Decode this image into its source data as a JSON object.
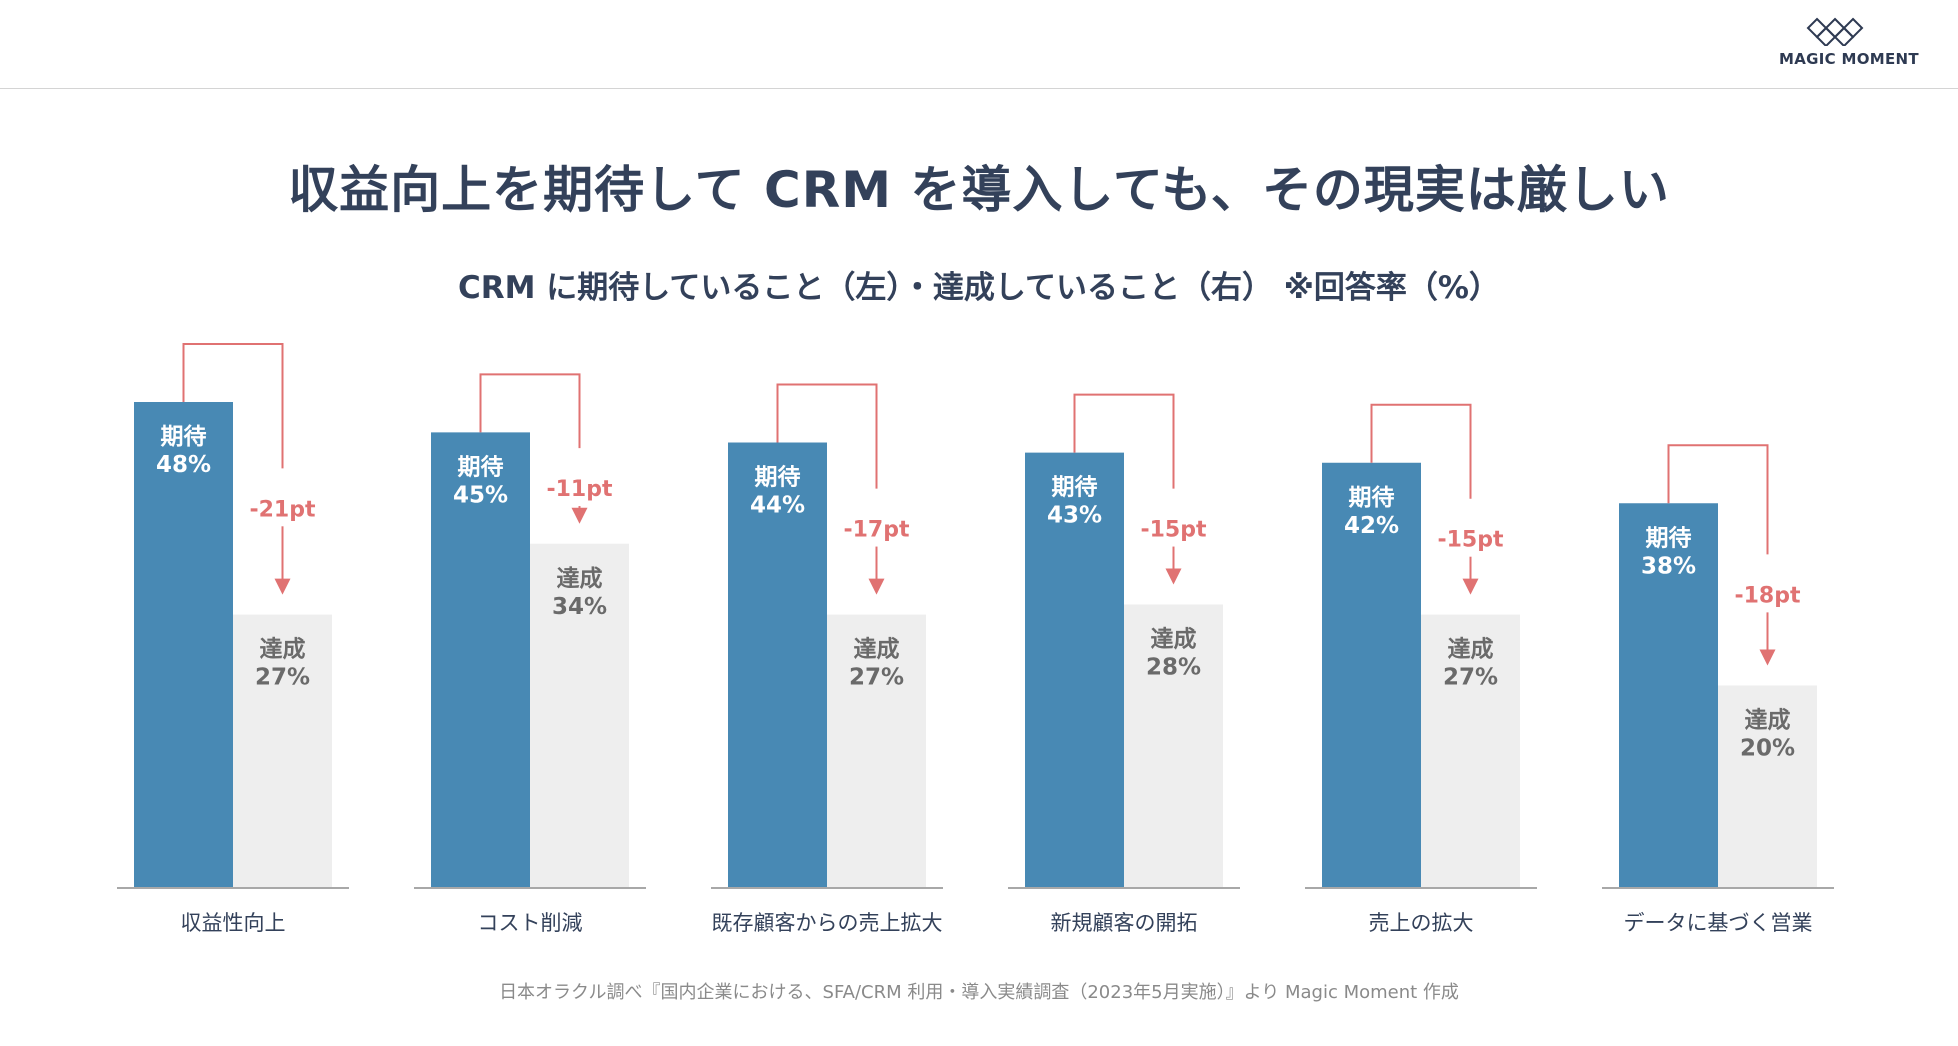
{
  "logo": {
    "text": "MAGIC MOMENT"
  },
  "title": "収益向上を期待して CRM を導入しても、その現実は厳しい",
  "subtitle": "CRM に期待していること（左）・達成していること（右） ※回答率（%）",
  "source": "日本オラクル調べ『国内企業における、SFA/CRM 利用・導入実績調査（2023年5月実施）』より Magic Moment 作成",
  "colors": {
    "expected": "#4889b4",
    "achieved": "#eeeeee",
    "diff": "#e07272",
    "text_dark": "#33415a",
    "text_gray": "#6a6a6a"
  },
  "chart_data": {
    "type": "bar",
    "categories": [
      "収益性向上",
      "コスト削減",
      "既存顧客からの売上拡大",
      "新規顧客の開拓",
      "売上の拡大",
      "データに基づく営業"
    ],
    "series": [
      {
        "name": "期待",
        "values": [
          48,
          45,
          44,
          43,
          42,
          38
        ]
      },
      {
        "name": "達成",
        "values": [
          27,
          34,
          27,
          28,
          27,
          20
        ]
      }
    ],
    "value_labels": {
      "expected": [
        "期待\n48%",
        "期待\n45%",
        "期待\n44%",
        "期待\n43%",
        "期待\n42%",
        "期待\n38%"
      ],
      "achieved": [
        "達成\n27%",
        "達成\n34%",
        "達成\n27%",
        "達成\n28%",
        "達成\n27%",
        "達成\n20%"
      ]
    },
    "differences": [
      "-21pt",
      "-11pt",
      "-17pt",
      "-15pt",
      "-15pt",
      "-18pt"
    ],
    "ylim": [
      0,
      48
    ],
    "grid": false,
    "legend": "none"
  }
}
